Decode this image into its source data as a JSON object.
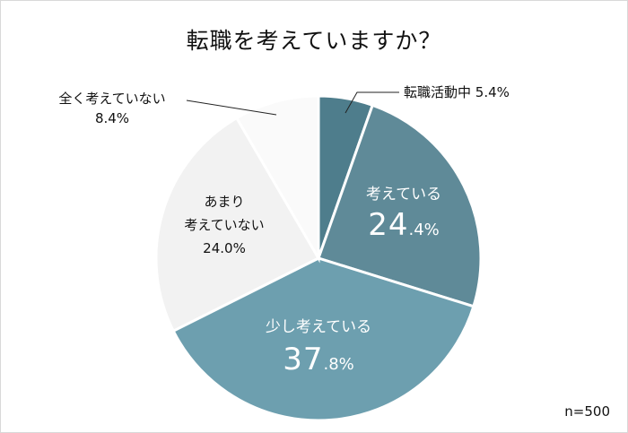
{
  "title": "転職を考えていますか？",
  "sample_size": "n=500",
  "labels": {
    "job_hunting": {
      "name": "転職活動中",
      "value": "5.4%"
    },
    "thinking": {
      "name": "考えている",
      "int": "24",
      "dec": ".4%"
    },
    "somewhat": {
      "name": "少し考えている",
      "int": "37",
      "dec": ".8%"
    },
    "not_much": {
      "name1": "あまり",
      "name2": "考えていない",
      "value": "24.0%"
    },
    "not_at_all": {
      "name": "全く考えていない",
      "value": "8.4%"
    }
  },
  "chart_data": {
    "type": "pie",
    "title": "転職を考えていますか？",
    "note": "n=500",
    "start_angle": "12 o'clock, clockwise",
    "categories": [
      "転職活動中",
      "考えている",
      "少し考えている",
      "あまり考えていない",
      "全く考えていない"
    ],
    "values": [
      5.4,
      24.4,
      37.8,
      24.0,
      8.4
    ],
    "colors": [
      "#4e7d8c",
      "#5f8a98",
      "#6d9faf",
      "#f2f2f2",
      "#fafafa"
    ]
  }
}
